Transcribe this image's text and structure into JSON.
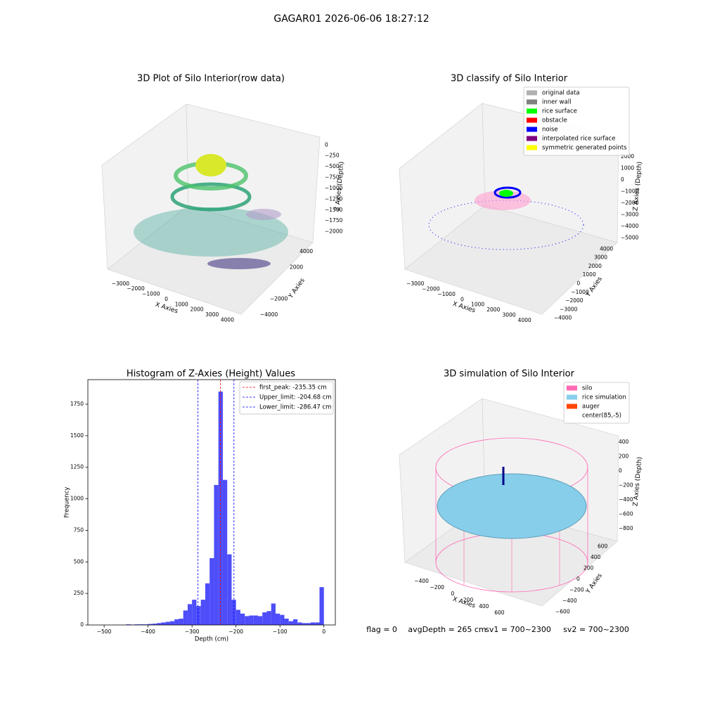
{
  "title": "GAGAR01 2026-06-06 18:27:12",
  "footer": [
    "flag = 0",
    "avgDepth = 265 cm",
    "sv1 = 700~2300",
    "sv2 = 700~2300"
  ],
  "chart_data": [
    {
      "type": "scatter3d",
      "title": "3D Plot of Silo Interior(row data)",
      "xlabel": "X Axies",
      "ylabel": "Y Axies",
      "zlabel": "Z Axies (Depth)",
      "xlim": [
        -3800,
        4900
      ],
      "xticks": [
        {
          "value": -3000,
          "label": "−3000"
        },
        {
          "value": -2000,
          "label": "−2000"
        },
        {
          "value": -1000,
          "label": "−1000"
        },
        0,
        1000,
        2000,
        3000,
        4000
      ],
      "ylim": [
        -4700,
        4700
      ],
      "yticks": [
        {
          "value": -4000,
          "label": "−4000"
        },
        {
          "value": -2000,
          "label": "−2000"
        },
        2000,
        4000
      ],
      "zlim": [
        -2250,
        150
      ],
      "zticks": [
        0,
        {
          "value": -250,
          "label": "−250"
        },
        {
          "value": -500,
          "label": "−500"
        },
        {
          "value": -750,
          "label": "−750"
        },
        {
          "value": -1000,
          "label": "−1000"
        },
        {
          "value": -1250,
          "label": "−1250"
        },
        {
          "value": -1500,
          "label": "−1500"
        },
        {
          "value": -1750,
          "label": "−1750"
        },
        {
          "value": -2000,
          "label": "−2000"
        }
      ]
    },
    {
      "type": "scatter3d",
      "title": "3D classify of Silo Interior",
      "xlabel": "X Axies",
      "ylabel": "Y Axies",
      "zlabel": "Z Axies (Depth)",
      "xlim": [
        -3800,
        4800
      ],
      "xticks": [
        {
          "value": -3000,
          "label": "−3000"
        },
        {
          "value": -2000,
          "label": "−2000"
        },
        {
          "value": -1000,
          "label": "−1000"
        },
        0,
        1000,
        2000,
        3000,
        4000
      ],
      "ylim": [
        -4600,
        4600
      ],
      "yticks": [
        {
          "value": -4000,
          "label": "−4000"
        },
        {
          "value": -3000,
          "label": "−3000"
        },
        {
          "value": -2000,
          "label": "−2000"
        },
        {
          "value": -1000,
          "label": "−1000"
        },
        0,
        1000,
        2000,
        3000,
        4000
      ],
      "zlim": [
        -5500,
        3500
      ],
      "zticks": [
        2000,
        1000,
        0,
        {
          "value": -1000,
          "label": "−1000"
        },
        {
          "value": -2000,
          "label": "−2000"
        },
        {
          "value": -3000,
          "label": "−3000"
        },
        {
          "value": -4000,
          "label": "−4000"
        },
        {
          "value": -5000,
          "label": "−5000"
        }
      ],
      "legend_entries": [
        {
          "name": "original data",
          "color": "#b0b0b0"
        },
        {
          "name": "inner wall",
          "color": "#808080"
        },
        {
          "name": "rice surface",
          "color": "#00ff00"
        },
        {
          "name": "obstacle",
          "color": "#ff0000"
        },
        {
          "name": "noise",
          "color": "#0000ff"
        },
        {
          "name": "interpolated rice surface",
          "color": "#800080"
        },
        {
          "name": "symmetric generated points",
          "color": "#ffff00"
        }
      ]
    },
    {
      "type": "histogram",
      "title": "Histogram of Z-Axies (Height) Values",
      "xlabel": "Depth (cm)",
      "ylabel": "Frequency",
      "color": "#4d4dfa",
      "bins": [
        -510,
        -500,
        -490,
        -480,
        -470,
        -460,
        -450,
        -440,
        -430,
        -420,
        -410,
        -400,
        -390,
        -380,
        -370,
        -360,
        -350,
        -340,
        -330,
        -320,
        -310,
        -300,
        -290,
        -280,
        -270,
        -260,
        -250,
        -240,
        -230,
        -220,
        -210,
        -200,
        -190,
        -180,
        -170,
        -160,
        -150,
        -140,
        -130,
        -120,
        -110,
        -100,
        -90,
        -80,
        -70,
        -60,
        -50,
        -40,
        -30,
        -20,
        -10,
        0
      ],
      "counts": [
        0,
        0,
        0,
        0,
        0,
        0,
        5,
        3,
        5,
        5,
        5,
        8,
        10,
        15,
        20,
        25,
        30,
        45,
        50,
        115,
        165,
        200,
        150,
        200,
        330,
        530,
        1110,
        1850,
        1150,
        560,
        200,
        120,
        90,
        70,
        75,
        75,
        70,
        100,
        110,
        170,
        90,
        80,
        50,
        30,
        45,
        20,
        15,
        15,
        20,
        20,
        300
      ],
      "xlim": [
        -537,
        26
      ],
      "xticks": [
        {
          "value": -500,
          "label": "−500"
        },
        {
          "value": -400,
          "label": "−400"
        },
        {
          "value": -300,
          "label": "−300"
        },
        {
          "value": -200,
          "label": "−200"
        },
        {
          "value": -100,
          "label": "−100"
        },
        0
      ],
      "ylim": [
        0,
        1945
      ],
      "yticks": [
        0,
        250,
        500,
        750,
        1000,
        1250,
        1500,
        1750
      ],
      "vlines": [
        {
          "name": "first_peak: -235.35 cm",
          "value": -235.35,
          "color": "#ff0000"
        },
        {
          "name": "Upper_limit: -204.68 cm",
          "value": -204.68,
          "color": "#0000ff"
        },
        {
          "name": "Lower_limit: -286.47 cm",
          "value": -286.47,
          "color": "#0000ff"
        }
      ]
    },
    {
      "type": "surface3d",
      "title": "3D simulation of Silo Interior",
      "xlabel": "X Axies",
      "ylabel": "Y Axies",
      "zlabel": "Z Axies (Depth)",
      "xlim": [
        -550,
        750
      ],
      "xticks": [
        {
          "value": -400,
          "label": "−400"
        },
        {
          "value": -200,
          "label": "−200"
        },
        0,
        200,
        400,
        600
      ],
      "ylim": [
        -700,
        700
      ],
      "yticks": [
        {
          "value": -600,
          "label": "−600"
        },
        {
          "value": -400,
          "label": "−400"
        },
        {
          "value": -200,
          "label": "−200"
        },
        0,
        200,
        400,
        600
      ],
      "zlim": [
        -900,
        500
      ],
      "zticks": [
        400,
        200,
        0,
        {
          "value": -200,
          "label": "−200"
        },
        {
          "value": -400,
          "label": "−400"
        },
        {
          "value": -600,
          "label": "−600"
        },
        {
          "value": -800,
          "label": "−800"
        }
      ],
      "legend_entries": [
        {
          "name": "silo",
          "color": "#ff69b4"
        },
        {
          "name": "rice simulation",
          "color": "#87ceeb"
        },
        {
          "name": "auger",
          "color": "#ff4500"
        },
        {
          "name": "center(85,-5)",
          "color": "#ffffff"
        }
      ]
    }
  ]
}
